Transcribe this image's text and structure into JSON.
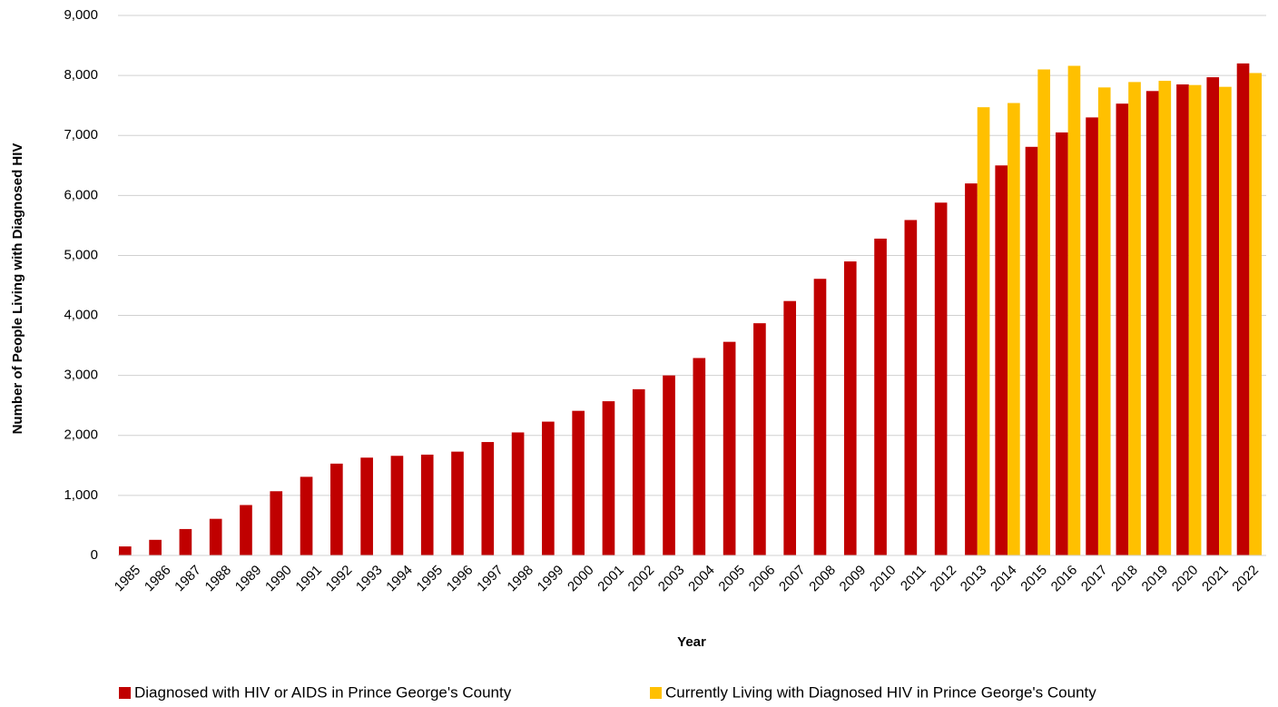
{
  "chart_data": {
    "type": "bar",
    "y_label": "Number of People Living with Diagnosed HIV",
    "x_label": "Year",
    "categories": [
      "1985",
      "1986",
      "1987",
      "1988",
      "1989",
      "1990",
      "1991",
      "1992",
      "1993",
      "1994",
      "1995",
      "1996",
      "1997",
      "1998",
      "1999",
      "2000",
      "2001",
      "2002",
      "2003",
      "2004",
      "2005",
      "2006",
      "2007",
      "2008",
      "2009",
      "2010",
      "2011",
      "2012",
      "2013",
      "2014",
      "2015",
      "2016",
      "2017",
      "2018",
      "2019",
      "2020",
      "2021",
      "2022"
    ],
    "series": [
      {
        "name": "Diagnosed with HIV or AIDS in Prince George's County",
        "color": "#c00000",
        "values": [
          150,
          260,
          440,
          610,
          840,
          1070,
          1310,
          1530,
          1630,
          1660,
          1680,
          1730,
          1890,
          2050,
          2230,
          2410,
          2570,
          2770,
          3000,
          3290,
          3560,
          3870,
          4240,
          4610,
          4900,
          5280,
          5590,
          5880,
          6200,
          6500,
          6810,
          7050,
          7300,
          7530,
          7740,
          7850,
          7970,
          8200
        ]
      },
      {
        "name": "Currently Living with Diagnosed HIV in Prince George's County",
        "color": "#ffc000",
        "values": [
          null,
          null,
          null,
          null,
          null,
          null,
          null,
          null,
          null,
          null,
          null,
          null,
          null,
          null,
          null,
          null,
          null,
          null,
          null,
          null,
          null,
          null,
          null,
          null,
          null,
          null,
          null,
          null,
          7470,
          7540,
          8100,
          8160,
          7800,
          7890,
          7910,
          7840,
          7810,
          8040
        ]
      }
    ],
    "ylim": [
      0,
      9000
    ],
    "yticks": [
      0,
      {
        "value": 1000,
        "label": "1,000"
      },
      {
        "value": 2000,
        "label": "2,000"
      },
      {
        "value": 3000,
        "label": "3,000"
      },
      {
        "value": 4000,
        "label": "4,000"
      },
      {
        "value": 5000,
        "label": "5,000"
      },
      {
        "value": 6000,
        "label": "6,000"
      },
      {
        "value": 7000,
        "label": "7,000"
      },
      {
        "value": 8000,
        "label": "8,000"
      },
      {
        "value": 9000,
        "label": "9,000"
      }
    ],
    "grid": true,
    "legend": "bottom"
  }
}
